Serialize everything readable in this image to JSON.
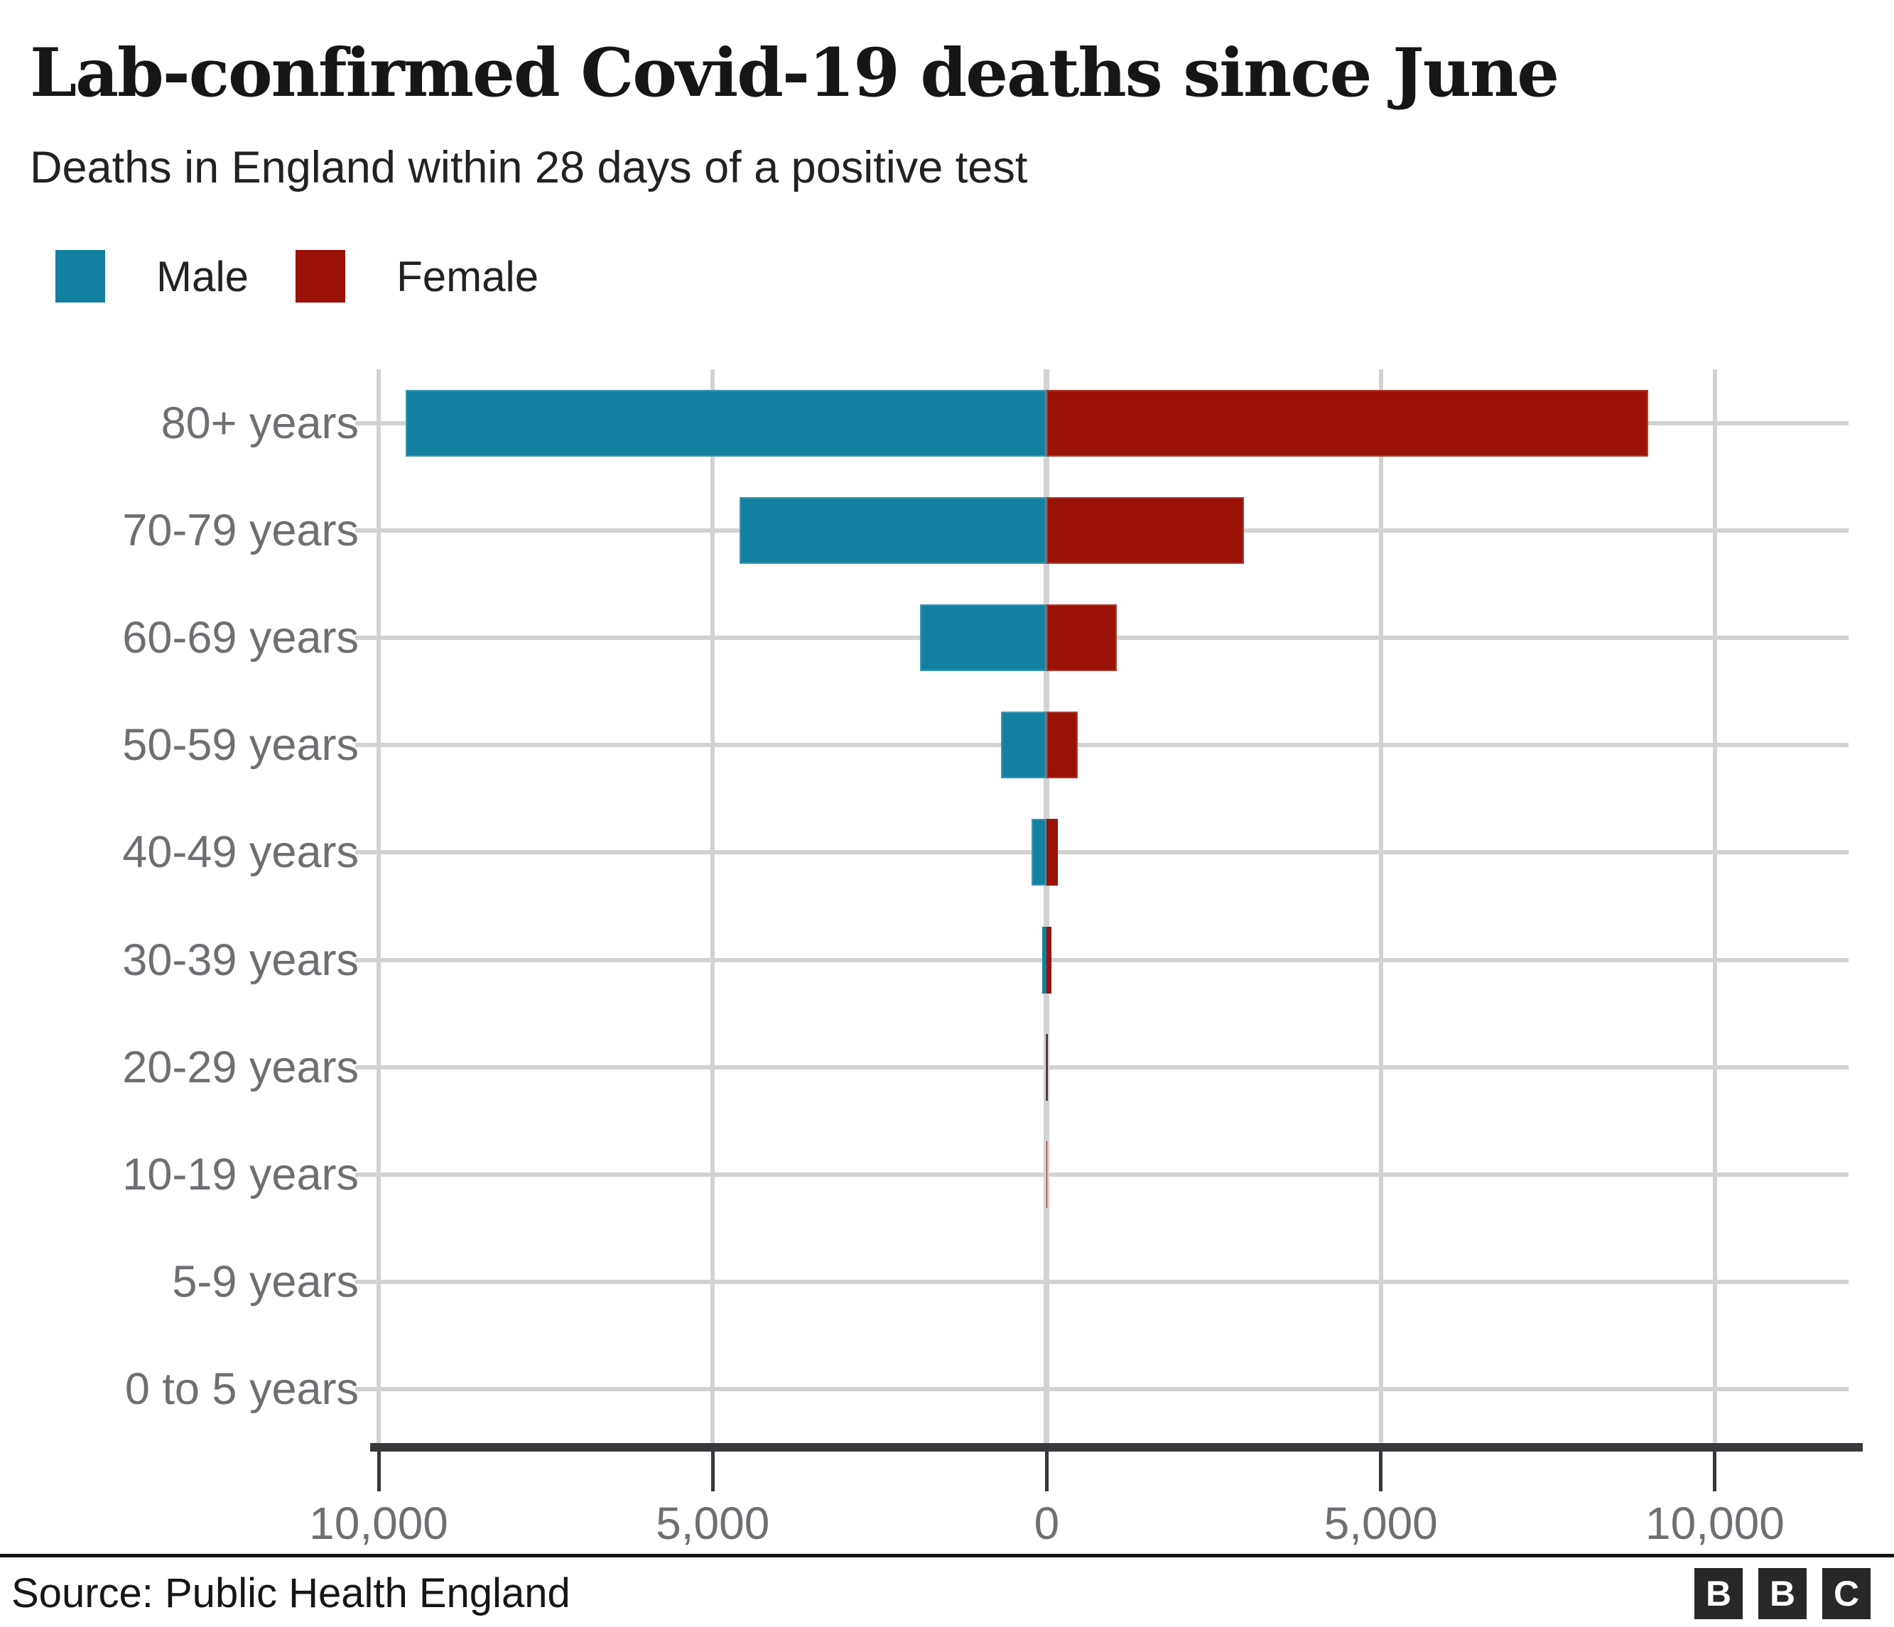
{
  "title": "Lab-confirmed Covid-19 deaths since June",
  "subtitle": "Deaths in England within 28 days of a positive test",
  "legend": {
    "male_label": "Male",
    "female_label": "Female"
  },
  "footer": {
    "source": "Source: Public Health England",
    "logo_letters": [
      "B",
      "B",
      "C"
    ]
  },
  "colors": {
    "male": "#1380a1",
    "female": "#9a1106",
    "grid": "#d2d2d2",
    "axis_text": "#6e6e73",
    "baseline": "#38383c",
    "logo_square": "#282828"
  },
  "chart_data": {
    "type": "bar",
    "orientation": "horizontal-diverging",
    "title": "Lab-confirmed Covid-19 deaths since June",
    "subtitle": "Deaths in England within 28 days of a positive test",
    "categories": [
      "80+ years",
      "70-79 years",
      "60-69 years",
      "50-59 years",
      "40-49 years",
      "30-39 years",
      "20-29 years",
      "10-19 years",
      "5-9 years",
      "0 to 5 years"
    ],
    "series": [
      {
        "name": "Male",
        "color": "#1380a1",
        "direction": "left",
        "values": [
          9600,
          4600,
          1900,
          690,
          230,
          70,
          18,
          10,
          0,
          0
        ]
      },
      {
        "name": "Female",
        "color": "#9a1106",
        "direction": "right",
        "values": [
          9000,
          2950,
          1050,
          460,
          160,
          65,
          18,
          6,
          0,
          0
        ]
      }
    ],
    "x_ticks": [
      {
        "value": -10000,
        "label": "10,000"
      },
      {
        "value": -5000,
        "label": "5,000"
      },
      {
        "value": 0,
        "label": "0"
      },
      {
        "value": 5000,
        "label": "5,000"
      },
      {
        "value": 10000,
        "label": "10,000"
      }
    ],
    "xlim": [
      -10000,
      12000
    ],
    "grid": true,
    "legend_position": "top-left",
    "value_note": "values estimated from bar lengths"
  }
}
